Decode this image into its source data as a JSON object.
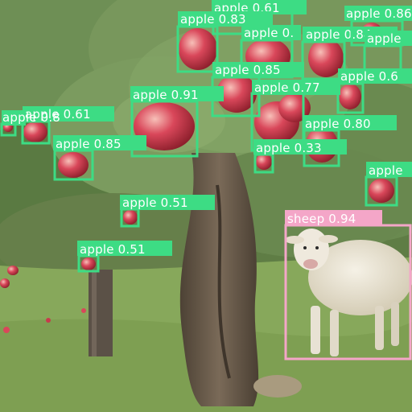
{
  "image": {
    "subject": "apple tree in an orchard with a sheep on the grass"
  },
  "detections": [
    {
      "label": "apple 0.61",
      "cls": "apple"
    },
    {
      "label": "apple 0.83",
      "cls": "apple"
    },
    {
      "label": "apple 0.",
      "cls": "apple"
    },
    {
      "label": "apple 0.84",
      "cls": "apple"
    },
    {
      "label": "apple 0.86",
      "cls": "apple"
    },
    {
      "label": "apple",
      "cls": "apple"
    },
    {
      "label": "apple 0.85",
      "cls": "apple"
    },
    {
      "label": "apple 0.91",
      "cls": "apple"
    },
    {
      "label": "apple 0.77",
      "cls": "apple"
    },
    {
      "label": "apple 0.6",
      "cls": "apple"
    },
    {
      "label": "apple 0.61",
      "cls": "apple"
    },
    {
      "label": "apple 0.8",
      "cls": "apple"
    },
    {
      "label": "apple 0.85",
      "cls": "apple"
    },
    {
      "label": "apple 0.80",
      "cls": "apple"
    },
    {
      "label": "apple 0.33",
      "cls": "apple"
    },
    {
      "label": "apple",
      "cls": "apple"
    },
    {
      "label": "apple 0.51",
      "cls": "apple"
    },
    {
      "label": "apple 0.51",
      "cls": "apple"
    },
    {
      "label": "sheep 0.94",
      "cls": "sheep"
    }
  ],
  "colors": {
    "apple_box": "#3ddc84",
    "sheep_box": "#f4a6c8",
    "label_text": "#ffffff"
  }
}
